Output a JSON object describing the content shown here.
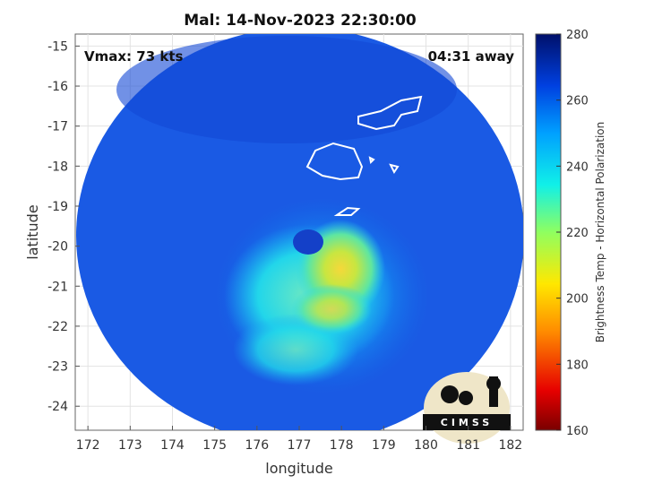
{
  "chart_data": {
    "type": "heatmap",
    "title": "Mal: 14-Nov-2023 22:30:00",
    "xlabel": "longitude",
    "ylabel": "latitude",
    "xlim": [
      171.7,
      182.3
    ],
    "ylim": [
      -24.6,
      -14.7
    ],
    "x_ticks": [
      172,
      173,
      174,
      175,
      176,
      177,
      178,
      179,
      180,
      181,
      182
    ],
    "y_ticks": [
      -15,
      -16,
      -17,
      -18,
      -19,
      -20,
      -21,
      -22,
      -23,
      -24
    ],
    "grid": true,
    "annotations": {
      "vmax": "Vmax: 73 kts",
      "time_away": "04:31 away"
    },
    "colorbar": {
      "label": "Brightness Temp - Horizontal Polarization",
      "min": 160,
      "max": 280,
      "ticks": [
        160,
        180,
        200,
        220,
        240,
        260,
        280
      ]
    },
    "swath_center": [
      177.0,
      -19.7
    ],
    "features": [
      {
        "feature": "eye",
        "lon": 176.8,
        "lat": -19.9,
        "value": 252
      },
      {
        "feature": "warm core",
        "lon": 178.3,
        "lat": -20.2,
        "value": 207
      },
      {
        "feature": "rain band",
        "lon": 177.5,
        "lat": -21.5,
        "value": 222
      }
    ],
    "logo": "CIMSS"
  }
}
